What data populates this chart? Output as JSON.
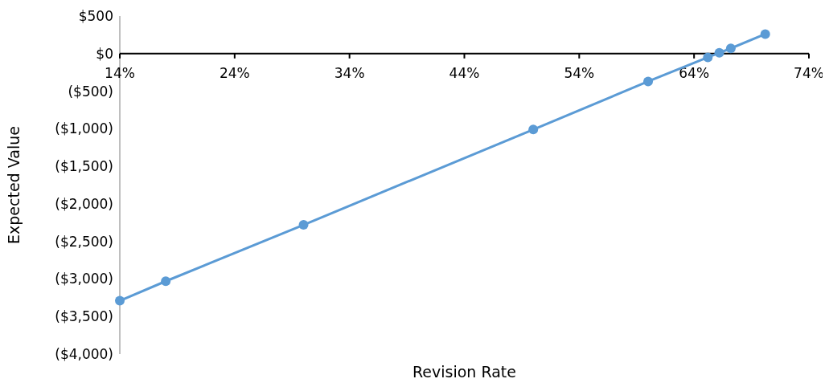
{
  "chart_data": {
    "type": "line",
    "xlabel": "Revision Rate",
    "ylabel": "Expected Value",
    "x": [
      14,
      18,
      30,
      50,
      60,
      65.2,
      66.2,
      67.2,
      70.2
    ],
    "series": [
      {
        "color": "#5b9bd5",
        "values": [
          -3290,
          -3030,
          -2280,
          -1010,
          -370,
          -50,
          10,
          70,
          260
        ]
      }
    ],
    "xlim": [
      14,
      74
    ],
    "xticks": [
      {
        "value": 14,
        "label": "14%"
      },
      {
        "value": 24,
        "label": "24%"
      },
      {
        "value": 34,
        "label": "34%"
      },
      {
        "value": 44,
        "label": "44%"
      },
      {
        "value": 54,
        "label": "54%"
      },
      {
        "value": 64,
        "label": "64%"
      },
      {
        "value": 74,
        "label": "74%"
      }
    ],
    "ylim": [
      -4000,
      500
    ],
    "yticks": [
      {
        "value": 500,
        "label": "$500"
      },
      {
        "value": 0,
        "label": "$0"
      },
      {
        "value": -500,
        "label": "($500)"
      },
      {
        "value": -1000,
        "label": "($1,000)"
      },
      {
        "value": -1500,
        "label": "($1,500)"
      },
      {
        "value": -2000,
        "label": "($2,000)"
      },
      {
        "value": -2500,
        "label": "($2,500)"
      },
      {
        "value": -3000,
        "label": "($3,000)"
      },
      {
        "value": -3500,
        "label": "($3,500)"
      },
      {
        "value": -4000,
        "label": "($4,000)"
      }
    ],
    "marker": "circle",
    "line_style": "solid",
    "grid": false
  }
}
